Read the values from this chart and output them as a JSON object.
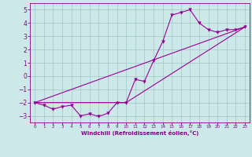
{
  "background_color": "#cce8e8",
  "grid_color": "#aacccc",
  "line_color": "#990099",
  "marker_color": "#990099",
  "xlabel": "Windchill (Refroidissement éolien,°C)",
  "xlabel_color": "#880088",
  "tick_color": "#880088",
  "xlim": [
    -0.5,
    23.5
  ],
  "ylim": [
    -3.5,
    5.5
  ],
  "yticks": [
    -3,
    -2,
    -1,
    0,
    1,
    2,
    3,
    4,
    5
  ],
  "xticks": [
    0,
    1,
    2,
    3,
    4,
    5,
    6,
    7,
    8,
    9,
    10,
    11,
    12,
    13,
    14,
    15,
    16,
    17,
    18,
    19,
    20,
    21,
    22,
    23
  ],
  "line1_x": [
    0,
    1,
    2,
    3,
    4,
    5,
    6,
    7,
    8,
    9,
    10,
    11,
    12,
    13,
    14,
    15,
    16,
    17,
    18,
    19,
    20,
    21,
    22,
    23
  ],
  "line1_y": [
    -2.0,
    -2.2,
    -2.5,
    -2.3,
    -2.2,
    -3.0,
    -2.85,
    -3.05,
    -2.8,
    -2.0,
    -2.0,
    -0.25,
    -0.4,
    1.15,
    2.6,
    4.6,
    4.8,
    5.0,
    4.0,
    3.5,
    3.3,
    3.5,
    3.5,
    3.7
  ],
  "line2_x": [
    0,
    10,
    23
  ],
  "line2_y": [
    -2.0,
    -2.0,
    3.7
  ],
  "line3_x": [
    0,
    23
  ],
  "line3_y": [
    -2.0,
    3.7
  ],
  "figsize": [
    3.2,
    2.0
  ],
  "dpi": 100
}
